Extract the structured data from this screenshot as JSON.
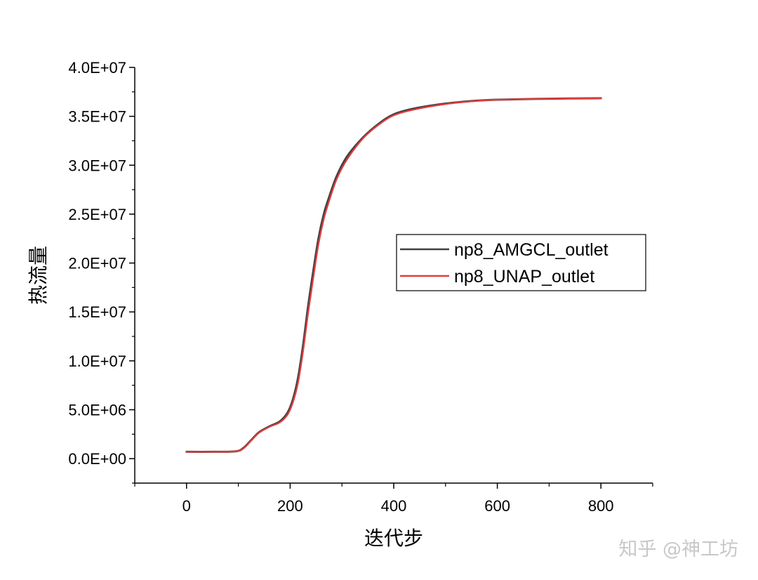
{
  "chart_data": {
    "type": "line",
    "xlabel": "迭代步",
    "ylabel": "热流量",
    "xlim": [
      -100,
      900
    ],
    "ylim": [
      -2500000,
      40000000
    ],
    "x_ticks": [
      0,
      200,
      400,
      600,
      800
    ],
    "x_tick_labels": [
      "0",
      "200",
      "400",
      "600",
      "800"
    ],
    "y_ticks": [
      0,
      5000000,
      10000000,
      15000000,
      20000000,
      25000000,
      30000000,
      35000000,
      40000000
    ],
    "y_tick_labels": [
      "0.0E+00",
      "5.0E+06",
      "1.0E+07",
      "1.5E+07",
      "2.0E+07",
      "2.5E+07",
      "3.0E+07",
      "3.5E+07",
      "4.0E+07"
    ],
    "legend_position": "center-right",
    "series": [
      {
        "name": "np8_AMGCL_outlet",
        "color": "#404040",
        "x": [
          0,
          50,
          95,
          110,
          125,
          140,
          160,
          180,
          195,
          205,
          215,
          225,
          235,
          245,
          255,
          265,
          275,
          290,
          310,
          340,
          370,
          400,
          440,
          500,
          560,
          600,
          700,
          800
        ],
        "y": [
          700000,
          700000,
          750000,
          1100000,
          1900000,
          2700000,
          3300000,
          3800000,
          4700000,
          6000000,
          8200000,
          11600000,
          15700000,
          19300000,
          22600000,
          25000000,
          26700000,
          28900000,
          30900000,
          32800000,
          34200000,
          35200000,
          35800000,
          36300000,
          36600000,
          36700000,
          36800000,
          36850000
        ]
      },
      {
        "name": "np8_UNAP_outlet",
        "color": "#e03c3c",
        "x": [
          0,
          50,
          95,
          110,
          125,
          140,
          160,
          180,
          195,
          205,
          215,
          225,
          235,
          245,
          255,
          265,
          275,
          290,
          310,
          340,
          370,
          400,
          440,
          500,
          560,
          600,
          700,
          800
        ],
        "y": [
          700000,
          700000,
          750000,
          1050000,
          1850000,
          2650000,
          3250000,
          3700000,
          4500000,
          5700000,
          7700000,
          11000000,
          15000000,
          18600000,
          22000000,
          24500000,
          26300000,
          28600000,
          30600000,
          32700000,
          34100000,
          35100000,
          35700000,
          36250000,
          36580000,
          36700000,
          36800000,
          36850000
        ]
      }
    ]
  },
  "watermark": "知乎 @神工坊"
}
